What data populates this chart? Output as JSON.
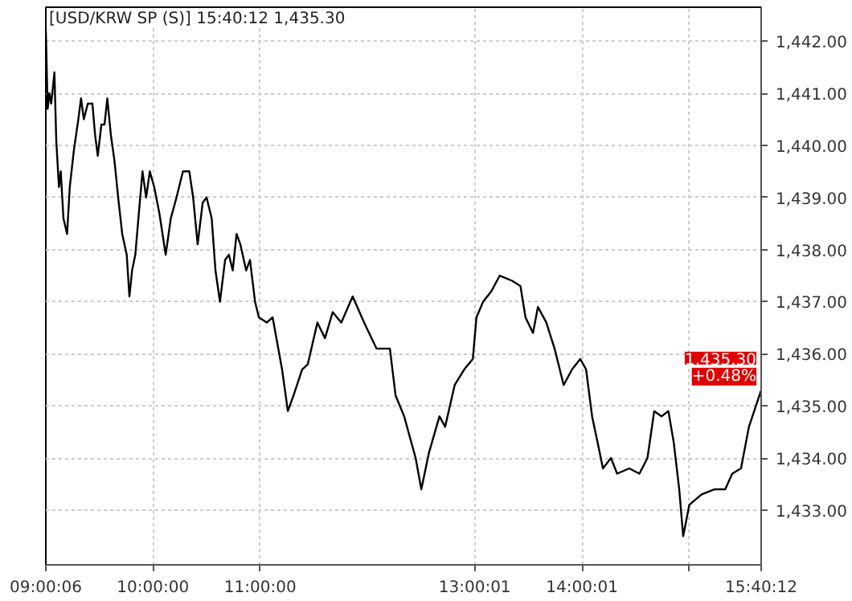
{
  "chart_data": {
    "type": "line",
    "title": "[USD/KRW SP (S)] 15:40:12  1,435.30",
    "x": [
      9.002,
      9.019,
      9.035,
      9.052,
      9.082,
      9.099,
      9.124,
      9.141,
      9.166,
      9.2,
      9.225,
      9.263,
      9.305,
      9.33,
      9.356,
      9.393,
      9.436,
      9.461,
      9.486,
      9.52,
      9.549,
      9.575,
      9.608,
      9.642,
      9.676,
      9.714,
      9.756,
      9.781,
      9.806,
      9.836,
      9.869,
      9.903,
      9.937,
      9.971,
      10.012,
      10.06,
      10.119,
      10.167,
      10.22,
      10.28,
      10.339,
      10.375,
      10.417,
      10.464,
      10.5,
      10.548,
      10.583,
      10.625,
      10.673,
      10.708,
      10.744,
      10.78,
      10.815,
      10.869,
      10.905,
      10.952,
      10.988,
      11.062,
      11.116,
      11.204,
      11.258,
      11.311,
      11.391,
      11.444,
      11.533,
      11.604,
      11.676,
      11.756,
      11.862,
      11.969,
      12.084,
      12.209,
      12.262,
      12.342,
      12.449,
      12.502,
      12.573,
      12.671,
      12.724,
      12.813,
      12.902,
      12.982,
      13.016,
      13.078,
      13.155,
      13.233,
      13.349,
      13.426,
      13.473,
      13.543,
      13.589,
      13.667,
      13.744,
      13.829,
      13.907,
      13.984,
      14.038,
      14.094,
      14.145,
      14.195,
      14.27,
      14.327,
      14.44,
      14.535,
      14.61,
      14.673,
      14.742,
      14.805,
      14.855,
      14.906,
      14.943,
      15.0,
      15.114,
      15.237,
      15.335,
      15.4,
      15.482,
      15.556,
      15.621,
      15.67
    ],
    "series": [
      {
        "color": "#000000",
        "values": [
          1442.2,
          1440.7,
          1441.0,
          1440.8,
          1441.4,
          1440.1,
          1439.2,
          1439.5,
          1438.6,
          1438.3,
          1439.2,
          1439.9,
          1440.5,
          1440.9,
          1440.5,
          1440.8,
          1440.8,
          1440.2,
          1439.8,
          1440.4,
          1440.4,
          1440.9,
          1440.2,
          1439.7,
          1439.0,
          1438.3,
          1437.9,
          1437.1,
          1437.6,
          1437.9,
          1438.7,
          1439.5,
          1439.0,
          1439.5,
          1439.2,
          1438.7,
          1437.9,
          1438.6,
          1439.0,
          1439.5,
          1439.5,
          1439.0,
          1438.1,
          1438.9,
          1439.0,
          1438.6,
          1437.6,
          1437.0,
          1437.8,
          1437.9,
          1437.6,
          1438.3,
          1438.1,
          1437.6,
          1437.8,
          1437.0,
          1436.7,
          1436.6,
          1436.7,
          1435.7,
          1434.9,
          1435.2,
          1435.7,
          1435.8,
          1436.6,
          1436.3,
          1436.8,
          1436.6,
          1437.1,
          1436.6,
          1436.1,
          1436.1,
          1435.2,
          1434.8,
          1434.0,
          1433.4,
          1434.1,
          1434.8,
          1434.6,
          1435.4,
          1435.7,
          1435.9,
          1436.7,
          1437.0,
          1437.2,
          1437.5,
          1437.4,
          1437.3,
          1436.7,
          1436.4,
          1436.9,
          1436.6,
          1436.1,
          1435.4,
          1435.7,
          1435.9,
          1435.7,
          1434.8,
          1434.3,
          1433.8,
          1434.0,
          1433.7,
          1433.8,
          1433.7,
          1434.0,
          1434.9,
          1434.8,
          1434.9,
          1434.3,
          1433.4,
          1432.5,
          1433.1,
          1433.3,
          1433.4,
          1433.4,
          1433.7,
          1433.8,
          1434.6,
          1435.0,
          1435.3
        ]
      }
    ],
    "xlim": [
      9.0017,
      15.67
    ],
    "xticks": [
      {
        "value": 9.0017,
        "label": "09:00:06"
      },
      {
        "value": 10,
        "label": "10:00:00"
      },
      {
        "value": 11,
        "label": "11:00:00"
      },
      {
        "value": 13.0003,
        "label": "13:00:01"
      },
      {
        "value": 14.0003,
        "label": "14:00:01"
      },
      {
        "value": 15,
        "label": null
      },
      {
        "value": 15.67,
        "label": "15:40:12"
      }
    ],
    "ylim": [
      1431.95,
      1442.65
    ],
    "yticks": [
      {
        "value": 1433,
        "label": "1,433.00"
      },
      {
        "value": 1434,
        "label": "1,434.00"
      },
      {
        "value": 1435,
        "label": "1,435.00"
      },
      {
        "value": 1436,
        "label": "1,436.00"
      },
      {
        "value": 1437,
        "label": "1,437.00"
      },
      {
        "value": 1438,
        "label": "1,438.00"
      },
      {
        "value": 1439,
        "label": "1,439.00"
      },
      {
        "value": 1440,
        "label": "1,440.00"
      },
      {
        "value": 1441,
        "label": "1,441.00"
      },
      {
        "value": 1442,
        "label": "1,442.00"
      }
    ],
    "annotations": [
      {
        "text": "1,435.30",
        "x": 15.67,
        "y": 1435.3
      },
      "+0.48%"
    ],
    "grid": true,
    "line_style": "solid"
  }
}
